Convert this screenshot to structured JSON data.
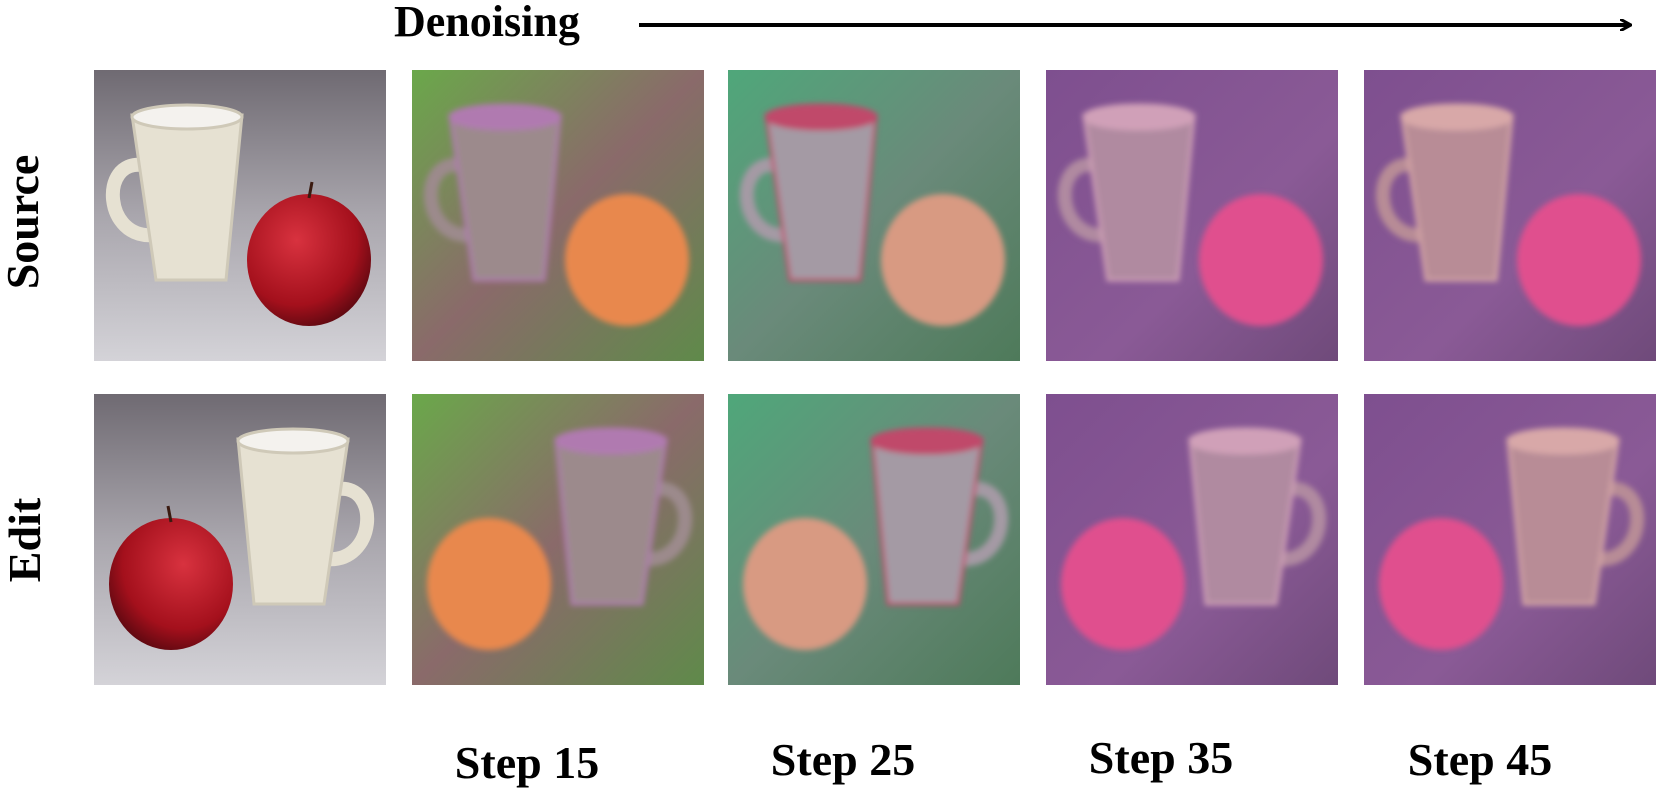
{
  "header": {
    "title": "Denoising"
  },
  "rows": [
    {
      "label": "Source"
    },
    {
      "label": "Edit"
    }
  ],
  "columns": [
    "Step 15",
    "Step 25",
    "Step 35",
    "Step 45"
  ]
}
